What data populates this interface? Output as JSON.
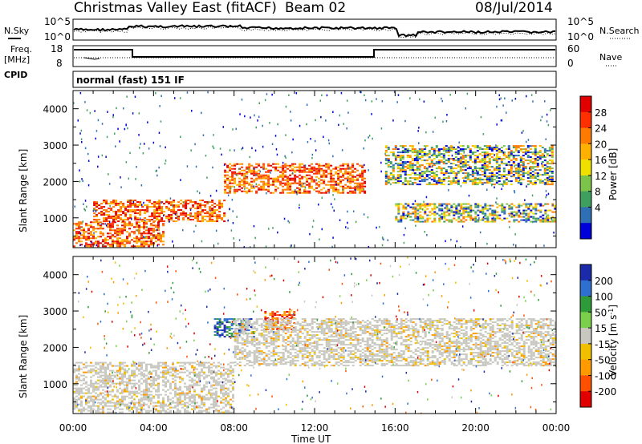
{
  "header": {
    "station": "Christmas Valley East (fitACF)",
    "beam": "Beam 02",
    "date": "08/Jul/2014"
  },
  "noise_panel": {
    "left_label": "N.Sky",
    "right_label": "N.Search",
    "left_ticks": [
      "10^5",
      "10^0"
    ],
    "right_ticks": [
      "10^5",
      "10^0"
    ]
  },
  "freq_panel": {
    "left_label_1": "Freq.",
    "left_label_2": "[MHz]",
    "left_ticks": [
      "18",
      "8"
    ],
    "right_label": "Nave",
    "right_ticks": [
      "60",
      "0"
    ]
  },
  "cpid": {
    "label": "CPID",
    "value": "normal (fast) 151 IF"
  },
  "chart_data": [
    {
      "type": "heatmap",
      "parameter": "Power",
      "ylabel": "Slant Range [km]",
      "xlabel": "Time UT",
      "ylim": [
        180,
        4500
      ],
      "yticks": [
        1000,
        2000,
        3000,
        4000
      ],
      "xticks": [
        "00:00",
        "04:00",
        "08:00",
        "12:00",
        "16:00",
        "20:00",
        "00:00"
      ],
      "colorbar": {
        "label": "Power [dB]",
        "ticks": [
          "28",
          "24",
          "20",
          "16",
          "12",
          "8",
          "4"
        ],
        "colors": [
          "#e00000",
          "#ff3000",
          "#ff7a00",
          "#ffb000",
          "#f0e000",
          "#7cc34a",
          "#3f9f5f",
          "#2f6fb4",
          "#0000d8"
        ]
      },
      "echo_regions": [
        {
          "t_start": 0.0,
          "t_end": 4.5,
          "range_low": 200,
          "range_high": 900,
          "level": "high"
        },
        {
          "t_start": 1.0,
          "t_end": 7.5,
          "range_low": 900,
          "range_high": 1500,
          "level": "high"
        },
        {
          "t_start": 7.5,
          "t_end": 14.5,
          "range_low": 1700,
          "range_high": 2500,
          "level": "high"
        },
        {
          "t_start": 15.5,
          "t_end": 23.8,
          "range_low": 1900,
          "range_high": 3000,
          "level": "medium"
        },
        {
          "t_start": 16.0,
          "t_end": 24.0,
          "range_low": 900,
          "range_high": 1400,
          "level": "medium"
        }
      ]
    },
    {
      "type": "heatmap",
      "parameter": "Velocity",
      "ylabel": "Slant Range [km]",
      "xlabel": "Time UT",
      "ylim": [
        180,
        4500
      ],
      "yticks": [
        1000,
        2000,
        3000,
        4000
      ],
      "xticks": [
        "00:00",
        "04:00",
        "08:00",
        "12:00",
        "16:00",
        "20:00",
        "00:00"
      ],
      "colorbar": {
        "label": "Velocity [m s^-1]",
        "ticks": [
          "200",
          "100",
          "50",
          "15",
          "-15",
          "-50",
          "-100",
          "-200"
        ],
        "colors": [
          "#1a2aa8",
          "#2f6fd0",
          "#2f9a3a",
          "#7ad04a",
          "#c8c8c0",
          "#f0c000",
          "#ff9a00",
          "#ff5000",
          "#e00000"
        ]
      },
      "echo_regions": [
        {
          "t_start": 0.0,
          "t_end": 8.0,
          "range_low": 200,
          "range_high": 1600,
          "level": "ground-scatter"
        },
        {
          "t_start": 7.0,
          "t_end": 9.0,
          "range_low": 2300,
          "range_high": 2800,
          "level": "positive"
        },
        {
          "t_start": 9.5,
          "t_end": 11.0,
          "range_low": 2500,
          "range_high": 3000,
          "level": "negative"
        },
        {
          "t_start": 8.0,
          "t_end": 24.0,
          "range_low": 1500,
          "range_high": 2800,
          "level": "ground-scatter"
        }
      ]
    }
  ]
}
